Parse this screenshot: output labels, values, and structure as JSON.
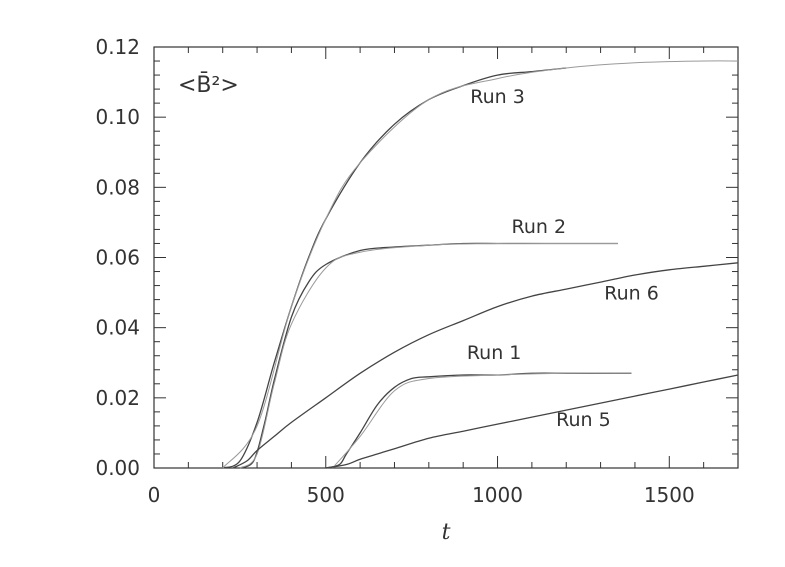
{
  "chart_data": {
    "type": "line",
    "title": "",
    "quantity_label": "<B̄²>",
    "xlabel": "t",
    "ylabel": "",
    "xlim": [
      0,
      1700
    ],
    "ylim": [
      0,
      0.12
    ],
    "x_ticks": [
      "0",
      "500",
      "1000",
      "1500"
    ],
    "y_ticks": [
      "0.00",
      "0.02",
      "0.04",
      "0.06",
      "0.08",
      "0.10",
      "0.12"
    ],
    "grid": false,
    "colors": {
      "simulation": "#444444",
      "fit": "#9a9a9a",
      "axes": "#333333"
    },
    "series": [
      {
        "name": "Run 3",
        "x": [
          200,
          250,
          300,
          350,
          400,
          450,
          500,
          600,
          700,
          800,
          900,
          1000,
          1100,
          1200
        ],
        "y": [
          0.0,
          0.002,
          0.013,
          0.03,
          0.046,
          0.06,
          0.071,
          0.087,
          0.098,
          0.105,
          0.109,
          0.112,
          0.113,
          0.114
        ]
      },
      {
        "name": "Run 3 fit",
        "x": [
          200,
          300,
          400,
          500,
          600,
          800,
          1000,
          1200,
          1400,
          1600,
          1700
        ],
        "y": [
          0.0,
          0.012,
          0.046,
          0.071,
          0.087,
          0.105,
          0.111,
          0.114,
          0.1155,
          0.116,
          0.116
        ]
      },
      {
        "name": "Run 2",
        "x": [
          250,
          290,
          320,
          350,
          400,
          450,
          500,
          600,
          700,
          800,
          900,
          1000,
          1100,
          1200,
          1300,
          1350
        ],
        "y": [
          0.0,
          0.002,
          0.012,
          0.025,
          0.043,
          0.053,
          0.058,
          0.062,
          0.063,
          0.0635,
          0.064,
          0.064,
          0.064,
          0.064,
          0.064,
          0.064
        ]
      },
      {
        "name": "Run 2 fit",
        "x": [
          250,
          300,
          350,
          400,
          500,
          600,
          800,
          1000,
          1200,
          1350
        ],
        "y": [
          0.0,
          0.004,
          0.024,
          0.041,
          0.057,
          0.0615,
          0.0635,
          0.064,
          0.064,
          0.064
        ]
      },
      {
        "name": "Run 6",
        "x": [
          230,
          270,
          300,
          350,
          400,
          500,
          600,
          700,
          800,
          900,
          1000,
          1100,
          1200,
          1300,
          1400,
          1500,
          1600,
          1700
        ],
        "y": [
          0.0,
          0.002,
          0.005,
          0.009,
          0.013,
          0.02,
          0.027,
          0.033,
          0.038,
          0.042,
          0.046,
          0.049,
          0.051,
          0.053,
          0.055,
          0.0565,
          0.0575,
          0.0585
        ]
      },
      {
        "name": "Run 1",
        "x": [
          500,
          540,
          560,
          600,
          650,
          700,
          750,
          800,
          900,
          1000,
          1100,
          1200,
          1300,
          1390
        ],
        "y": [
          0.0,
          0.001,
          0.004,
          0.01,
          0.018,
          0.023,
          0.0255,
          0.026,
          0.0265,
          0.0265,
          0.027,
          0.027,
          0.027,
          0.027
        ]
      },
      {
        "name": "Run 1 fit",
        "x": [
          520,
          600,
          700,
          800,
          1000,
          1200,
          1390
        ],
        "y": [
          0.0,
          0.009,
          0.022,
          0.0255,
          0.0265,
          0.027,
          0.027
        ]
      },
      {
        "name": "Run 5",
        "x": [
          500,
          560,
          600,
          650,
          700,
          800,
          900,
          1000,
          1100,
          1200,
          1300,
          1400,
          1500,
          1600,
          1700
        ],
        "y": [
          0.0,
          0.001,
          0.0025,
          0.004,
          0.0055,
          0.0085,
          0.0105,
          0.0125,
          0.0145,
          0.0165,
          0.0185,
          0.0205,
          0.0225,
          0.0245,
          0.0265
        ]
      }
    ],
    "labels": [
      {
        "text": "Run 3",
        "x": 1000,
        "y": 0.104
      },
      {
        "text": "Run 2",
        "x": 1120,
        "y": 0.067
      },
      {
        "text": "Run 6",
        "x": 1390,
        "y": 0.048
      },
      {
        "text": "Run 1",
        "x": 990,
        "y": 0.031
      },
      {
        "text": "Run 5",
        "x": 1250,
        "y": 0.012
      }
    ]
  }
}
